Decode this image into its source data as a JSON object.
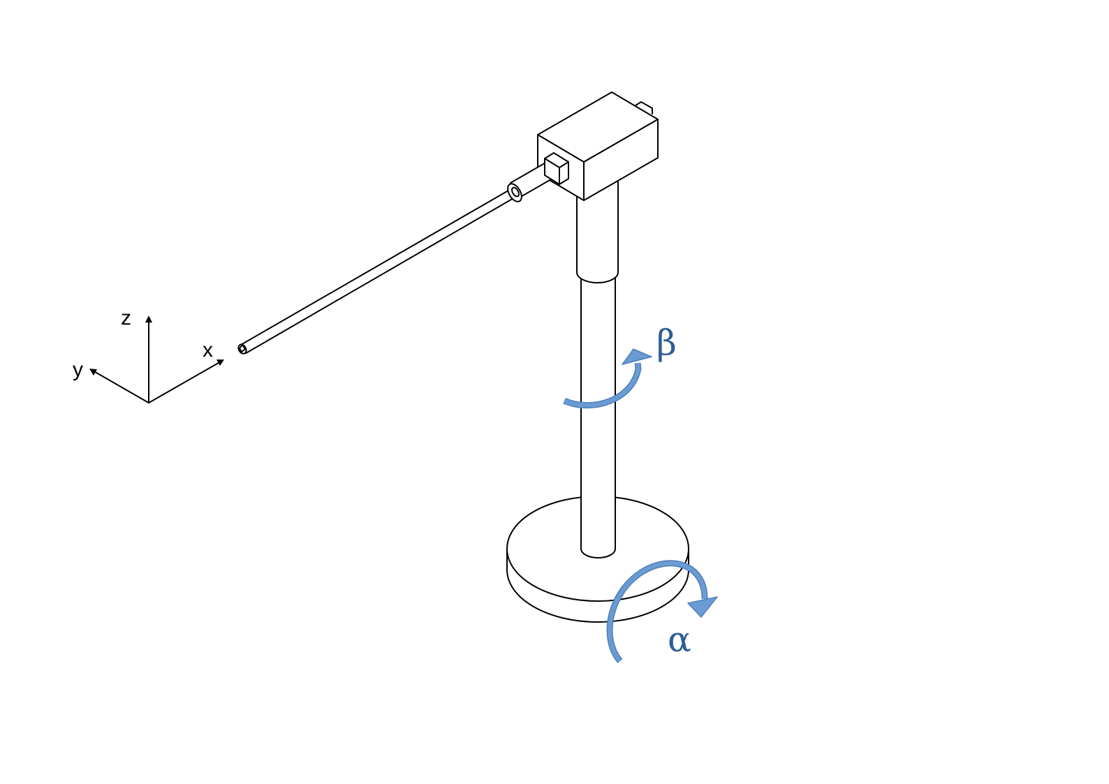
{
  "axes": {
    "z_label": "z",
    "y_label": "y",
    "x_label": "x"
  },
  "rotations": {
    "beta_label": "β",
    "alpha_label": "α"
  },
  "colors": {
    "line": "#000000",
    "arrow_fill": "#6B9BD3",
    "arrow_edge": "#4F7FB8",
    "label_text": "#2E5D96",
    "background": "#FFFFFF"
  }
}
